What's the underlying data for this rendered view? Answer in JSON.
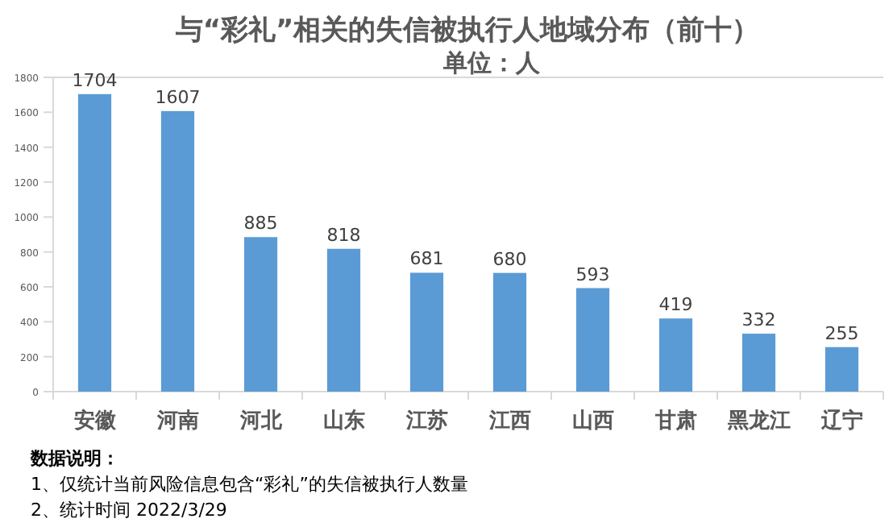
{
  "chart_data": {
    "type": "bar",
    "title": "与“彩礼”相关的失信被执行人地域分布（前十）",
    "subtitle": "单位：人",
    "categories": [
      "安徽",
      "河南",
      "河北",
      "山东",
      "江苏",
      "江西",
      "山西",
      "甘肃",
      "黑龙江",
      "辽宁"
    ],
    "values": [
      1704,
      1607,
      885,
      818,
      681,
      680,
      593,
      419,
      332,
      255
    ],
    "color": "#5b9bd5",
    "ylim": [
      0,
      1800
    ],
    "yticks": [
      0,
      200,
      400,
      600,
      800,
      1000,
      1200,
      1400,
      1600,
      1800
    ],
    "data_labels": true,
    "grid": false,
    "annotations": [
      "数据说明：",
      "1、仅统计当前风险信息包含“彩礼”的失信被执行人数量",
      "2、统计时间 2022/3/29"
    ]
  }
}
